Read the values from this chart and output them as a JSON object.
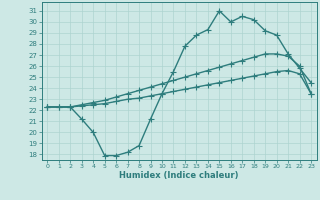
{
  "xlabel": "Humidex (Indice chaleur)",
  "bg_color": "#cde8e5",
  "line_color": "#2e7d7d",
  "grid_color": "#aed4d0",
  "xlim_min": -0.5,
  "xlim_max": 23.5,
  "ylim_min": 17.5,
  "ylim_max": 31.8,
  "xticks": [
    0,
    1,
    2,
    3,
    4,
    5,
    6,
    7,
    8,
    9,
    10,
    11,
    12,
    13,
    14,
    15,
    16,
    17,
    18,
    19,
    20,
    21,
    22,
    23
  ],
  "yticks": [
    18,
    19,
    20,
    21,
    22,
    23,
    24,
    25,
    26,
    27,
    28,
    29,
    30,
    31
  ],
  "line1_x": [
    0,
    1,
    2,
    3,
    4,
    5,
    6,
    7,
    8,
    9,
    10,
    11,
    12,
    13,
    14,
    15,
    16,
    17,
    18,
    19,
    20,
    21,
    22,
    23
  ],
  "line1_y": [
    22.3,
    22.3,
    22.3,
    22.4,
    22.5,
    22.6,
    22.8,
    23.0,
    23.1,
    23.3,
    23.5,
    23.7,
    23.9,
    24.1,
    24.3,
    24.5,
    24.7,
    24.9,
    25.1,
    25.3,
    25.5,
    25.6,
    25.3,
    23.5
  ],
  "line2_x": [
    0,
    1,
    2,
    3,
    4,
    5,
    6,
    7,
    8,
    9,
    10,
    11,
    12,
    13,
    14,
    15,
    16,
    17,
    18,
    19,
    20,
    21,
    22,
    23
  ],
  "line2_y": [
    22.3,
    22.3,
    22.3,
    22.5,
    22.7,
    22.9,
    23.2,
    23.5,
    23.8,
    24.1,
    24.4,
    24.7,
    25.0,
    25.3,
    25.6,
    25.9,
    26.2,
    26.5,
    26.8,
    27.1,
    27.1,
    26.9,
    26.0,
    23.5
  ],
  "line3_x": [
    0,
    2,
    3,
    4,
    5,
    6,
    7,
    8,
    9,
    10,
    11,
    12,
    13,
    14,
    15,
    16,
    17,
    18,
    19,
    20,
    21,
    22,
    23
  ],
  "line3_y": [
    22.3,
    22.3,
    21.2,
    20.0,
    17.9,
    17.9,
    18.2,
    18.8,
    21.2,
    23.5,
    25.5,
    27.8,
    28.8,
    29.3,
    31.0,
    30.0,
    30.5,
    30.2,
    29.2,
    28.8,
    27.1,
    25.8,
    24.5
  ],
  "marker": "+",
  "markersize": 4,
  "linewidth": 1.0
}
